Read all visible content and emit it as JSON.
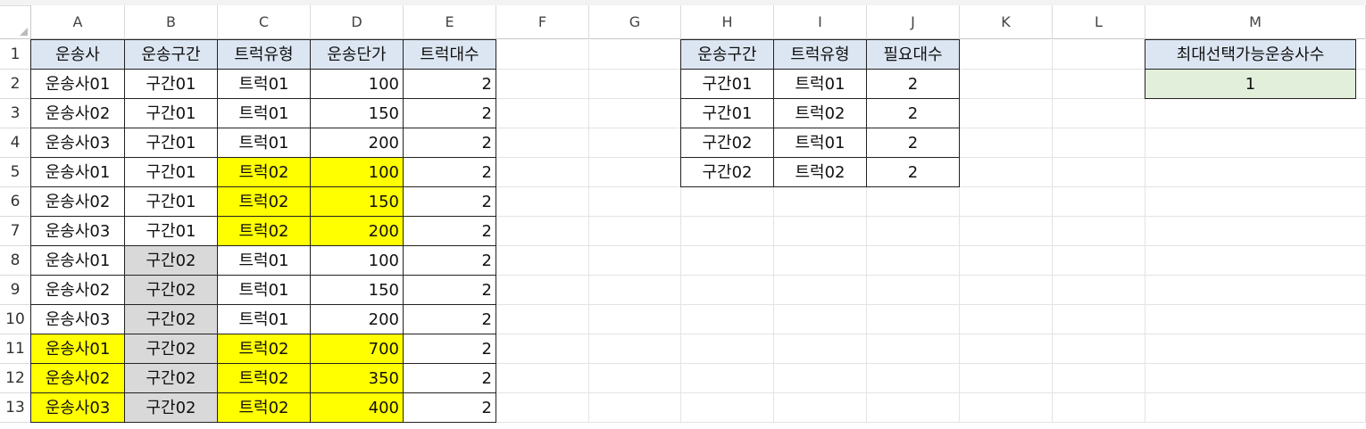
{
  "columns": [
    "A",
    "B",
    "C",
    "D",
    "E",
    "F",
    "G",
    "H",
    "I",
    "J",
    "K",
    "L",
    "M"
  ],
  "rows": [
    "1",
    "2",
    "3",
    "4",
    "5",
    "6",
    "7",
    "8",
    "9",
    "10",
    "11",
    "12",
    "13"
  ],
  "table1": {
    "headers": [
      "운송사",
      "운송구간",
      "트럭유형",
      "운송단가",
      "트럭대수"
    ],
    "rows": [
      [
        "운송사01",
        "구간01",
        "트럭01",
        "100",
        "2"
      ],
      [
        "운송사02",
        "구간01",
        "트럭01",
        "150",
        "2"
      ],
      [
        "운송사03",
        "구간01",
        "트럭01",
        "200",
        "2"
      ],
      [
        "운송사01",
        "구간01",
        "트럭02",
        "100",
        "2"
      ],
      [
        "운송사02",
        "구간01",
        "트럭02",
        "150",
        "2"
      ],
      [
        "운송사03",
        "구간01",
        "트럭02",
        "200",
        "2"
      ],
      [
        "운송사01",
        "구간02",
        "트럭01",
        "100",
        "2"
      ],
      [
        "운송사02",
        "구간02",
        "트럭01",
        "150",
        "2"
      ],
      [
        "운송사03",
        "구간02",
        "트럭01",
        "200",
        "2"
      ],
      [
        "운송사01",
        "구간02",
        "트럭02",
        "700",
        "2"
      ],
      [
        "운송사02",
        "구간02",
        "트럭02",
        "350",
        "2"
      ],
      [
        "운송사03",
        "구간02",
        "트럭02",
        "400",
        "2"
      ]
    ]
  },
  "table2": {
    "headers": [
      "운송구간",
      "트럭유형",
      "필요대수"
    ],
    "rows": [
      [
        "구간01",
        "트럭01",
        "2"
      ],
      [
        "구간01",
        "트럭02",
        "2"
      ],
      [
        "구간02",
        "트럭01",
        "2"
      ],
      [
        "구간02",
        "트럭02",
        "2"
      ]
    ]
  },
  "table3": {
    "header": "최대선택가능운송사수",
    "value": "1"
  },
  "colors": {
    "header_fill": "#dce6f2",
    "highlight_yellow": "#ffff00",
    "highlight_gray": "#d9d9d9",
    "result_green": "#e2efda"
  }
}
